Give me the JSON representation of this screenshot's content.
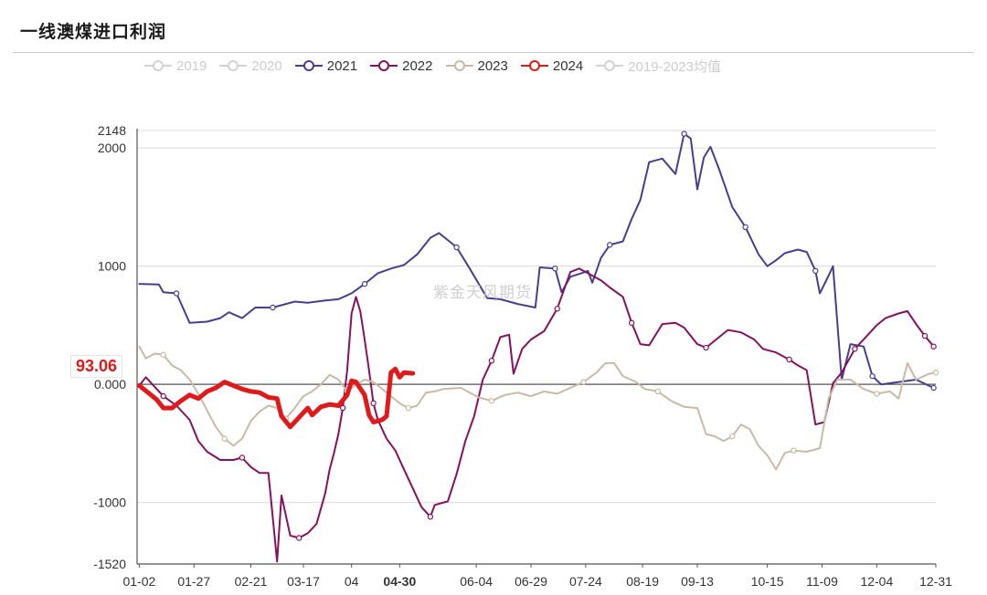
{
  "title": "一线澳煤进口利润",
  "watermark": "紫金天风期货",
  "chart_data": {
    "type": "line",
    "title": "一线澳煤进口利润",
    "xlabel": "",
    "ylabel": "",
    "x_range": [
      0,
      365
    ],
    "ylim": [
      -1520,
      2148
    ],
    "y_ticks": [
      {
        "value": 2148,
        "label": "2148"
      },
      {
        "value": 2000,
        "label": "2000"
      },
      {
        "value": 1000,
        "label": "1000"
      },
      {
        "value": 0,
        "label": "0.000"
      },
      {
        "value": -1000,
        "label": "-1000"
      },
      {
        "value": -1520,
        "label": "-1520"
      }
    ],
    "x_ticks": [
      {
        "x": 1,
        "label": "01-02",
        "highlight": false
      },
      {
        "x": 26,
        "label": "01-27",
        "highlight": false
      },
      {
        "x": 52,
        "label": "02-21",
        "highlight": false
      },
      {
        "x": 76,
        "label": "03-17",
        "highlight": false
      },
      {
        "x": 98,
        "label": "04",
        "highlight": false
      },
      {
        "x": 120,
        "label": "04-30",
        "highlight": true
      },
      {
        "x": 155,
        "label": "06-04",
        "highlight": false
      },
      {
        "x": 180,
        "label": "06-29",
        "highlight": false
      },
      {
        "x": 205,
        "label": "07-24",
        "highlight": false
      },
      {
        "x": 231,
        "label": "08-19",
        "highlight": false
      },
      {
        "x": 256,
        "label": "09-13",
        "highlight": false
      },
      {
        "x": 288,
        "label": "10-15",
        "highlight": false
      },
      {
        "x": 313,
        "label": "11-09",
        "highlight": false
      },
      {
        "x": 338,
        "label": "12-04",
        "highlight": false
      },
      {
        "x": 365,
        "label": "12-31",
        "highlight": false
      }
    ],
    "legend_position": "top",
    "callout": {
      "series": "2024",
      "value": "93.06"
    },
    "series": [
      {
        "name": "2019",
        "color": "#d2d2d2",
        "hidden": true,
        "width": 2,
        "points": []
      },
      {
        "name": "2020",
        "color": "#d2d2d2",
        "hidden": true,
        "width": 2,
        "points": []
      },
      {
        "name": "2021",
        "color": "#4a3d8f",
        "hidden": false,
        "width": 2,
        "points": [
          [
            1,
            850
          ],
          [
            10,
            845
          ],
          [
            12,
            780
          ],
          [
            18,
            770
          ],
          [
            24,
            520
          ],
          [
            32,
            530
          ],
          [
            38,
            560
          ],
          [
            42,
            610
          ],
          [
            48,
            560
          ],
          [
            54,
            650
          ],
          [
            62,
            650
          ],
          [
            68,
            680
          ],
          [
            72,
            700
          ],
          [
            78,
            690
          ],
          [
            86,
            710
          ],
          [
            92,
            720
          ],
          [
            98,
            770
          ],
          [
            104,
            850
          ],
          [
            110,
            940
          ],
          [
            116,
            980
          ],
          [
            122,
            1010
          ],
          [
            128,
            1100
          ],
          [
            134,
            1240
          ],
          [
            138,
            1280
          ],
          [
            146,
            1160
          ],
          [
            152,
            980
          ],
          [
            160,
            730
          ],
          [
            166,
            720
          ],
          [
            174,
            680
          ],
          [
            182,
            650
          ],
          [
            184,
            990
          ],
          [
            191,
            980
          ],
          [
            194,
            780
          ],
          [
            198,
            910
          ],
          [
            203,
            940
          ],
          [
            206,
            960
          ],
          [
            208,
            860
          ],
          [
            212,
            1070
          ],
          [
            216,
            1180
          ],
          [
            222,
            1210
          ],
          [
            226,
            1400
          ],
          [
            230,
            1560
          ],
          [
            234,
            1880
          ],
          [
            240,
            1910
          ],
          [
            246,
            1780
          ],
          [
            250,
            2120
          ],
          [
            253,
            2080
          ],
          [
            256,
            1650
          ],
          [
            259,
            1920
          ],
          [
            262,
            2010
          ],
          [
            266,
            1820
          ],
          [
            272,
            1500
          ],
          [
            278,
            1330
          ],
          [
            284,
            1100
          ],
          [
            288,
            1000
          ],
          [
            292,
            1050
          ],
          [
            296,
            1110
          ],
          [
            302,
            1140
          ],
          [
            306,
            1120
          ],
          [
            310,
            960
          ],
          [
            312,
            770
          ],
          [
            316,
            920
          ],
          [
            318,
            1000
          ],
          [
            322,
            40
          ],
          [
            326,
            340
          ],
          [
            332,
            320
          ],
          [
            336,
            70
          ],
          [
            340,
            0
          ],
          [
            348,
            20
          ],
          [
            356,
            40
          ],
          [
            364,
            -30
          ]
        ]
      },
      {
        "name": "2022",
        "color": "#85115f",
        "hidden": false,
        "width": 2,
        "points": [
          [
            1,
            -10
          ],
          [
            4,
            60
          ],
          [
            8,
            -20
          ],
          [
            12,
            -100
          ],
          [
            18,
            -180
          ],
          [
            24,
            -300
          ],
          [
            28,
            -480
          ],
          [
            32,
            -570
          ],
          [
            38,
            -640
          ],
          [
            44,
            -640
          ],
          [
            48,
            -620
          ],
          [
            52,
            -700
          ],
          [
            56,
            -750
          ],
          [
            60,
            -750
          ],
          [
            64,
            -1500
          ],
          [
            66,
            -940
          ],
          [
            70,
            -1280
          ],
          [
            74,
            -1300
          ],
          [
            78,
            -1260
          ],
          [
            82,
            -1180
          ],
          [
            86,
            -920
          ],
          [
            88,
            -720
          ],
          [
            90,
            -580
          ],
          [
            92,
            -420
          ],
          [
            94,
            -200
          ],
          [
            96,
            120
          ],
          [
            98,
            600
          ],
          [
            100,
            740
          ],
          [
            102,
            620
          ],
          [
            104,
            380
          ],
          [
            106,
            120
          ],
          [
            108,
            -160
          ],
          [
            110,
            -300
          ],
          [
            114,
            -460
          ],
          [
            118,
            -560
          ],
          [
            122,
            -720
          ],
          [
            126,
            -880
          ],
          [
            130,
            -1040
          ],
          [
            134,
            -1120
          ],
          [
            136,
            -1020
          ],
          [
            142,
            -990
          ],
          [
            146,
            -760
          ],
          [
            150,
            -480
          ],
          [
            154,
            -270
          ],
          [
            158,
            40
          ],
          [
            162,
            200
          ],
          [
            166,
            400
          ],
          [
            170,
            420
          ],
          [
            172,
            90
          ],
          [
            176,
            300
          ],
          [
            180,
            380
          ],
          [
            186,
            450
          ],
          [
            192,
            640
          ],
          [
            198,
            950
          ],
          [
            202,
            980
          ],
          [
            206,
            940
          ],
          [
            212,
            880
          ],
          [
            216,
            820
          ],
          [
            222,
            740
          ],
          [
            226,
            520
          ],
          [
            230,
            340
          ],
          [
            234,
            330
          ],
          [
            240,
            510
          ],
          [
            246,
            520
          ],
          [
            250,
            480
          ],
          [
            256,
            340
          ],
          [
            260,
            310
          ],
          [
            266,
            400
          ],
          [
            270,
            460
          ],
          [
            276,
            440
          ],
          [
            282,
            380
          ],
          [
            286,
            300
          ],
          [
            292,
            270
          ],
          [
            298,
            210
          ],
          [
            302,
            160
          ],
          [
            306,
            120
          ],
          [
            310,
            -340
          ],
          [
            314,
            -320
          ],
          [
            318,
            10
          ],
          [
            322,
            100
          ],
          [
            328,
            300
          ],
          [
            334,
            420
          ],
          [
            338,
            500
          ],
          [
            342,
            560
          ],
          [
            348,
            600
          ],
          [
            352,
            620
          ],
          [
            356,
            510
          ],
          [
            360,
            410
          ],
          [
            364,
            320
          ]
        ]
      },
      {
        "name": "2023",
        "color": "#c7baa6",
        "hidden": false,
        "width": 2,
        "points": [
          [
            1,
            320
          ],
          [
            4,
            220
          ],
          [
            8,
            260
          ],
          [
            12,
            250
          ],
          [
            16,
            160
          ],
          [
            20,
            120
          ],
          [
            24,
            40
          ],
          [
            28,
            -80
          ],
          [
            32,
            -220
          ],
          [
            36,
            -360
          ],
          [
            40,
            -460
          ],
          [
            44,
            -520
          ],
          [
            48,
            -460
          ],
          [
            52,
            -310
          ],
          [
            56,
            -230
          ],
          [
            60,
            -180
          ],
          [
            64,
            -200
          ],
          [
            68,
            -290
          ],
          [
            72,
            -200
          ],
          [
            76,
            -100
          ],
          [
            80,
            -60
          ],
          [
            84,
            0
          ],
          [
            88,
            80
          ],
          [
            92,
            40
          ],
          [
            96,
            -60
          ],
          [
            100,
            0
          ],
          [
            104,
            40
          ],
          [
            108,
            20
          ],
          [
            112,
            -40
          ],
          [
            116,
            -100
          ],
          [
            120,
            -160
          ],
          [
            124,
            -200
          ],
          [
            128,
            -180
          ],
          [
            132,
            -70
          ],
          [
            136,
            -60
          ],
          [
            140,
            -40
          ],
          [
            148,
            -30
          ],
          [
            156,
            -110
          ],
          [
            162,
            -140
          ],
          [
            168,
            -90
          ],
          [
            174,
            -70
          ],
          [
            180,
            -100
          ],
          [
            186,
            -60
          ],
          [
            192,
            -80
          ],
          [
            198,
            -30
          ],
          [
            204,
            20
          ],
          [
            210,
            100
          ],
          [
            214,
            180
          ],
          [
            218,
            180
          ],
          [
            222,
            70
          ],
          [
            228,
            20
          ],
          [
            232,
            -40
          ],
          [
            238,
            -60
          ],
          [
            244,
            -140
          ],
          [
            250,
            -190
          ],
          [
            256,
            -200
          ],
          [
            260,
            -420
          ],
          [
            264,
            -440
          ],
          [
            268,
            -480
          ],
          [
            272,
            -440
          ],
          [
            276,
            -340
          ],
          [
            280,
            -380
          ],
          [
            284,
            -520
          ],
          [
            288,
            -600
          ],
          [
            292,
            -720
          ],
          [
            296,
            -580
          ],
          [
            300,
            -560
          ],
          [
            306,
            -570
          ],
          [
            312,
            -540
          ],
          [
            316,
            -120
          ],
          [
            320,
            40
          ],
          [
            326,
            40
          ],
          [
            332,
            -40
          ],
          [
            338,
            -80
          ],
          [
            344,
            -60
          ],
          [
            348,
            -120
          ],
          [
            352,
            180
          ],
          [
            356,
            40
          ],
          [
            362,
            90
          ],
          [
            365,
            100
          ]
        ]
      },
      {
        "name": "2024",
        "color": "#e01a1a",
        "hidden": false,
        "width": 5,
        "points": [
          [
            1,
            -10
          ],
          [
            5,
            -70
          ],
          [
            9,
            -130
          ],
          [
            12,
            -200
          ],
          [
            16,
            -200
          ],
          [
            20,
            -140
          ],
          [
            24,
            -90
          ],
          [
            28,
            -120
          ],
          [
            32,
            -60
          ],
          [
            36,
            -30
          ],
          [
            40,
            20
          ],
          [
            44,
            -10
          ],
          [
            48,
            -40
          ],
          [
            52,
            -60
          ],
          [
            56,
            -70
          ],
          [
            60,
            -110
          ],
          [
            64,
            -120
          ],
          [
            66,
            -270
          ],
          [
            70,
            -360
          ],
          [
            74,
            -280
          ],
          [
            78,
            -200
          ],
          [
            80,
            -260
          ],
          [
            84,
            -190
          ],
          [
            88,
            -170
          ],
          [
            92,
            -180
          ],
          [
            96,
            -90
          ],
          [
            98,
            30
          ],
          [
            100,
            20
          ],
          [
            104,
            -90
          ],
          [
            106,
            -260
          ],
          [
            108,
            -320
          ],
          [
            112,
            -300
          ],
          [
            114,
            -270
          ],
          [
            116,
            100
          ],
          [
            118,
            130
          ],
          [
            120,
            60
          ],
          [
            122,
            100
          ],
          [
            126,
            93.06
          ]
        ]
      },
      {
        "name": "2019-2023均值",
        "color": "#d2d2d2",
        "hidden": true,
        "width": 2,
        "points": []
      }
    ]
  }
}
